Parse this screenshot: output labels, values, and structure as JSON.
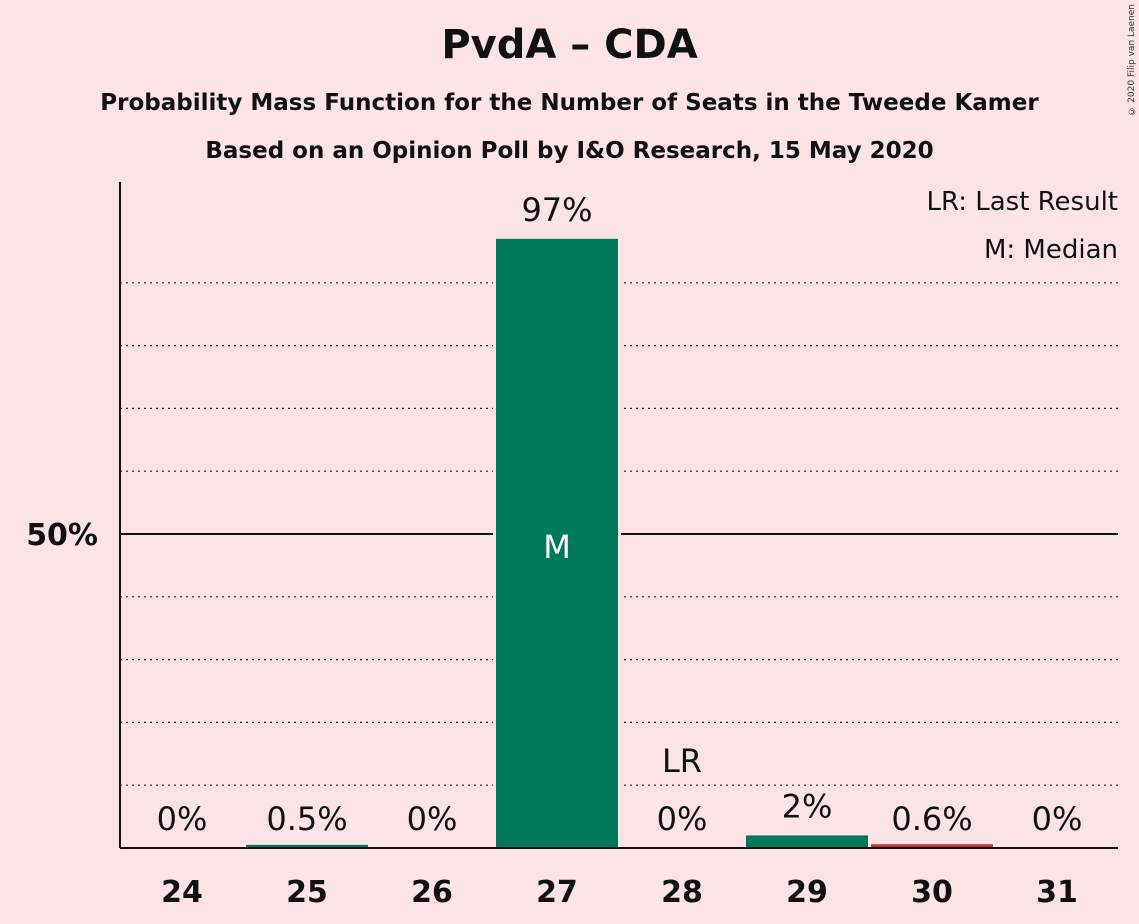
{
  "title": "PvdA – CDA",
  "subtitle": "Probability Mass Function for the Number of Seats in the Tweede Kamer",
  "subtitle2": "Based on an Opinion Poll by I&O Research, 15 May 2020",
  "copyright": "© 2020 Filip van Laenen",
  "legend": {
    "lr": "LR: Last Result",
    "m": "M: Median"
  },
  "colors": {
    "background": "#fce4e6",
    "bar": "#00785a",
    "last_result_bar": "#c0392b"
  },
  "chart_data": {
    "type": "bar",
    "categories": [
      "24",
      "25",
      "26",
      "27",
      "28",
      "29",
      "30",
      "31"
    ],
    "values": [
      0,
      0.5,
      0,
      97,
      0,
      2,
      0.6,
      0
    ],
    "value_labels": [
      "0%",
      "0.5%",
      "0%",
      "97%",
      "0%",
      "2%",
      "0.6%",
      "0%"
    ],
    "ylim": [
      0,
      100
    ],
    "y_ticks": [
      {
        "value": 50,
        "label": "50%"
      }
    ],
    "gridlines": [
      10,
      20,
      30,
      40,
      60,
      70,
      80,
      90
    ],
    "median_category": "27",
    "median_marker": "M",
    "last_result_category": "28",
    "last_result_marker": "LR",
    "legend_placement": "top-right"
  }
}
